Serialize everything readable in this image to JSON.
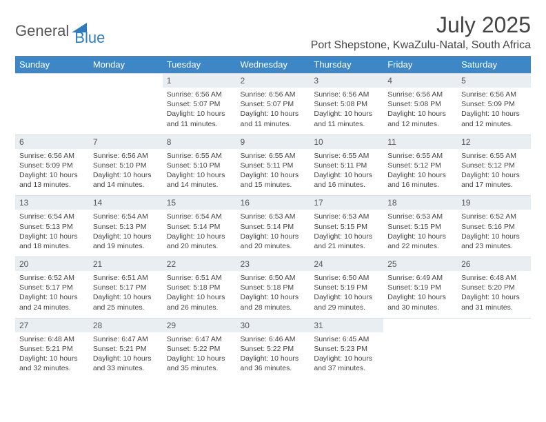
{
  "brand": {
    "text1": "General",
    "text2": "Blue"
  },
  "title": "July 2025",
  "location": "Port Shepstone, KwaZulu-Natal, South Africa",
  "colors": {
    "header_bg": "#3d87c7",
    "header_text": "#ffffff",
    "daynum_bg": "#e9eef2",
    "body_text": "#444444",
    "brand_gray": "#555555",
    "brand_blue": "#2f7bbf"
  },
  "day_headers": [
    "Sunday",
    "Monday",
    "Tuesday",
    "Wednesday",
    "Thursday",
    "Friday",
    "Saturday"
  ],
  "weeks": [
    {
      "nums": [
        "",
        "",
        "1",
        "2",
        "3",
        "4",
        "5"
      ],
      "cells": [
        null,
        null,
        {
          "sunrise": "Sunrise: 6:56 AM",
          "sunset": "Sunset: 5:07 PM",
          "day1": "Daylight: 10 hours",
          "day2": "and 11 minutes."
        },
        {
          "sunrise": "Sunrise: 6:56 AM",
          "sunset": "Sunset: 5:07 PM",
          "day1": "Daylight: 10 hours",
          "day2": "and 11 minutes."
        },
        {
          "sunrise": "Sunrise: 6:56 AM",
          "sunset": "Sunset: 5:08 PM",
          "day1": "Daylight: 10 hours",
          "day2": "and 11 minutes."
        },
        {
          "sunrise": "Sunrise: 6:56 AM",
          "sunset": "Sunset: 5:08 PM",
          "day1": "Daylight: 10 hours",
          "day2": "and 12 minutes."
        },
        {
          "sunrise": "Sunrise: 6:56 AM",
          "sunset": "Sunset: 5:09 PM",
          "day1": "Daylight: 10 hours",
          "day2": "and 12 minutes."
        }
      ]
    },
    {
      "nums": [
        "6",
        "7",
        "8",
        "9",
        "10",
        "11",
        "12"
      ],
      "cells": [
        {
          "sunrise": "Sunrise: 6:56 AM",
          "sunset": "Sunset: 5:09 PM",
          "day1": "Daylight: 10 hours",
          "day2": "and 13 minutes."
        },
        {
          "sunrise": "Sunrise: 6:56 AM",
          "sunset": "Sunset: 5:10 PM",
          "day1": "Daylight: 10 hours",
          "day2": "and 14 minutes."
        },
        {
          "sunrise": "Sunrise: 6:55 AM",
          "sunset": "Sunset: 5:10 PM",
          "day1": "Daylight: 10 hours",
          "day2": "and 14 minutes."
        },
        {
          "sunrise": "Sunrise: 6:55 AM",
          "sunset": "Sunset: 5:11 PM",
          "day1": "Daylight: 10 hours",
          "day2": "and 15 minutes."
        },
        {
          "sunrise": "Sunrise: 6:55 AM",
          "sunset": "Sunset: 5:11 PM",
          "day1": "Daylight: 10 hours",
          "day2": "and 16 minutes."
        },
        {
          "sunrise": "Sunrise: 6:55 AM",
          "sunset": "Sunset: 5:12 PM",
          "day1": "Daylight: 10 hours",
          "day2": "and 16 minutes."
        },
        {
          "sunrise": "Sunrise: 6:55 AM",
          "sunset": "Sunset: 5:12 PM",
          "day1": "Daylight: 10 hours",
          "day2": "and 17 minutes."
        }
      ]
    },
    {
      "nums": [
        "13",
        "14",
        "15",
        "16",
        "17",
        "18",
        "19"
      ],
      "cells": [
        {
          "sunrise": "Sunrise: 6:54 AM",
          "sunset": "Sunset: 5:13 PM",
          "day1": "Daylight: 10 hours",
          "day2": "and 18 minutes."
        },
        {
          "sunrise": "Sunrise: 6:54 AM",
          "sunset": "Sunset: 5:13 PM",
          "day1": "Daylight: 10 hours",
          "day2": "and 19 minutes."
        },
        {
          "sunrise": "Sunrise: 6:54 AM",
          "sunset": "Sunset: 5:14 PM",
          "day1": "Daylight: 10 hours",
          "day2": "and 20 minutes."
        },
        {
          "sunrise": "Sunrise: 6:53 AM",
          "sunset": "Sunset: 5:14 PM",
          "day1": "Daylight: 10 hours",
          "day2": "and 20 minutes."
        },
        {
          "sunrise": "Sunrise: 6:53 AM",
          "sunset": "Sunset: 5:15 PM",
          "day1": "Daylight: 10 hours",
          "day2": "and 21 minutes."
        },
        {
          "sunrise": "Sunrise: 6:53 AM",
          "sunset": "Sunset: 5:15 PM",
          "day1": "Daylight: 10 hours",
          "day2": "and 22 minutes."
        },
        {
          "sunrise": "Sunrise: 6:52 AM",
          "sunset": "Sunset: 5:16 PM",
          "day1": "Daylight: 10 hours",
          "day2": "and 23 minutes."
        }
      ]
    },
    {
      "nums": [
        "20",
        "21",
        "22",
        "23",
        "24",
        "25",
        "26"
      ],
      "cells": [
        {
          "sunrise": "Sunrise: 6:52 AM",
          "sunset": "Sunset: 5:17 PM",
          "day1": "Daylight: 10 hours",
          "day2": "and 24 minutes."
        },
        {
          "sunrise": "Sunrise: 6:51 AM",
          "sunset": "Sunset: 5:17 PM",
          "day1": "Daylight: 10 hours",
          "day2": "and 25 minutes."
        },
        {
          "sunrise": "Sunrise: 6:51 AM",
          "sunset": "Sunset: 5:18 PM",
          "day1": "Daylight: 10 hours",
          "day2": "and 26 minutes."
        },
        {
          "sunrise": "Sunrise: 6:50 AM",
          "sunset": "Sunset: 5:18 PM",
          "day1": "Daylight: 10 hours",
          "day2": "and 28 minutes."
        },
        {
          "sunrise": "Sunrise: 6:50 AM",
          "sunset": "Sunset: 5:19 PM",
          "day1": "Daylight: 10 hours",
          "day2": "and 29 minutes."
        },
        {
          "sunrise": "Sunrise: 6:49 AM",
          "sunset": "Sunset: 5:19 PM",
          "day1": "Daylight: 10 hours",
          "day2": "and 30 minutes."
        },
        {
          "sunrise": "Sunrise: 6:48 AM",
          "sunset": "Sunset: 5:20 PM",
          "day1": "Daylight: 10 hours",
          "day2": "and 31 minutes."
        }
      ]
    },
    {
      "nums": [
        "27",
        "28",
        "29",
        "30",
        "31",
        "",
        ""
      ],
      "cells": [
        {
          "sunrise": "Sunrise: 6:48 AM",
          "sunset": "Sunset: 5:21 PM",
          "day1": "Daylight: 10 hours",
          "day2": "and 32 minutes."
        },
        {
          "sunrise": "Sunrise: 6:47 AM",
          "sunset": "Sunset: 5:21 PM",
          "day1": "Daylight: 10 hours",
          "day2": "and 33 minutes."
        },
        {
          "sunrise": "Sunrise: 6:47 AM",
          "sunset": "Sunset: 5:22 PM",
          "day1": "Daylight: 10 hours",
          "day2": "and 35 minutes."
        },
        {
          "sunrise": "Sunrise: 6:46 AM",
          "sunset": "Sunset: 5:22 PM",
          "day1": "Daylight: 10 hours",
          "day2": "and 36 minutes."
        },
        {
          "sunrise": "Sunrise: 6:45 AM",
          "sunset": "Sunset: 5:23 PM",
          "day1": "Daylight: 10 hours",
          "day2": "and 37 minutes."
        },
        null,
        null
      ]
    }
  ]
}
